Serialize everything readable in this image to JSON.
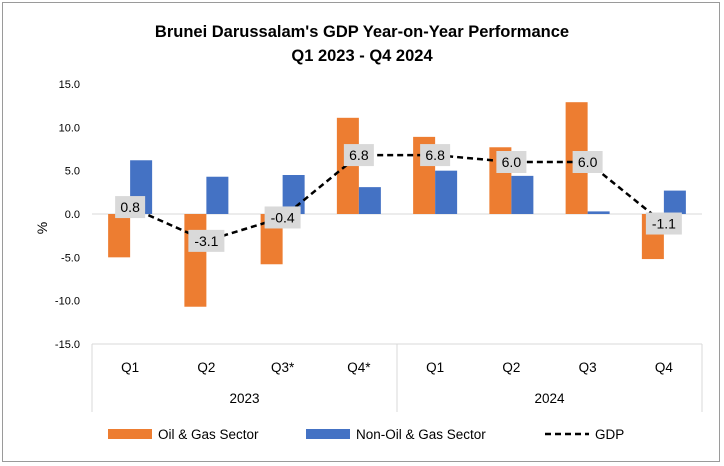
{
  "chart_data": {
    "type": "bar",
    "title": "Brunei Darussalam's GDP Year-on-Year Performance",
    "subtitle": "Q1 2023 - Q4 2024",
    "ylabel": "%",
    "ylim": [
      -15,
      15
    ],
    "yticks": [
      "15.0",
      "10.0",
      "5.0",
      "0.0",
      "-5.0",
      "-10.0",
      "-15.0"
    ],
    "grid": false,
    "legend_position": "bottom",
    "categories": [
      "Q1",
      "Q2",
      "Q3*",
      "Q4*",
      "Q1",
      "Q2",
      "Q3",
      "Q4"
    ],
    "groups": [
      {
        "label": "2023",
        "span": 4
      },
      {
        "label": "2024",
        "span": 4
      }
    ],
    "series": [
      {
        "name": "Oil & Gas Sector",
        "kind": "bar",
        "color": "#ED7D31",
        "values": [
          -5.0,
          -10.7,
          -5.8,
          11.1,
          8.9,
          7.7,
          12.9,
          -5.2
        ]
      },
      {
        "name": "Non-Oil & Gas Sector",
        "kind": "bar",
        "color": "#4472C4",
        "values": [
          6.2,
          4.3,
          4.5,
          3.1,
          5.0,
          4.4,
          0.3,
          2.7
        ]
      },
      {
        "name": "GDP",
        "kind": "line",
        "style": "dashed",
        "color": "#000000",
        "values": [
          0.8,
          -3.1,
          -0.4,
          6.8,
          6.8,
          6.0,
          6.0,
          -1.1
        ],
        "data_labels": [
          "0.8",
          "-3.1",
          "-0.4",
          "6.8",
          "6.8",
          "6.0",
          "6.0",
          "-1.1"
        ]
      }
    ]
  }
}
